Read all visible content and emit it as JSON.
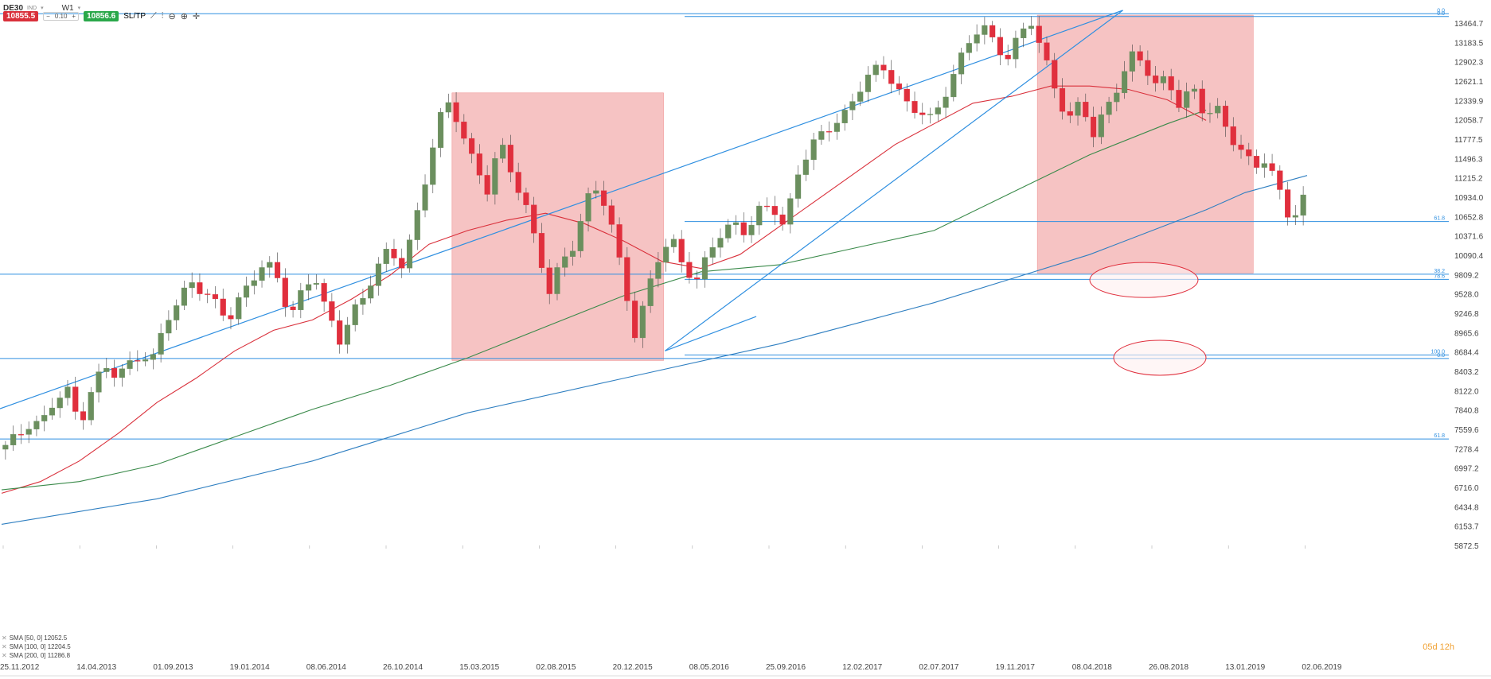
{
  "toolbar": {
    "symbol": "DE30",
    "symbol_type": "IND",
    "timeframe": "W1",
    "sell_price": "10855.5",
    "lot": "0.10",
    "buy_price": "10856.6",
    "sltp_label": "SL/TP",
    "icons": [
      "line-chart-icon",
      "bar-chart-icon",
      "zoom-out-icon",
      "zoom-in-icon",
      "crosshair-icon"
    ]
  },
  "legend": [
    {
      "label": "SMA [50, 0] 12052.5",
      "color": "#d9303b"
    },
    {
      "label": "SMA [100, 0] 12204.5",
      "color": "#3a8a4a"
    },
    {
      "label": "SMA [200, 0] 11286.8",
      "color": "#2f7fc1"
    }
  ],
  "countdown": "05d 12h",
  "colors": {
    "up": "#6b8f5e",
    "down": "#e02f3d",
    "zone": "#f4b8b8",
    "hline": "#2f8fe0",
    "ellipse": "#e02f3d"
  },
  "chart_data": {
    "type": "candlestick",
    "x_ticks": [
      "25.11.2012",
      "14.04.2013",
      "01.09.2013",
      "19.01.2014",
      "08.06.2014",
      "26.10.2014",
      "15.03.2015",
      "02.08.2015",
      "20.12.2015",
      "08.05.2016",
      "25.09.2016",
      "12.02.2017",
      "02.07.2017",
      "19.11.2017",
      "08.04.2018",
      "26.08.2018",
      "13.01.2019",
      "02.06.2019"
    ],
    "y_ticks": [
      "13464.7",
      "13183.5",
      "12902.3",
      "12621.1",
      "12339.9",
      "12058.7",
      "11777.5",
      "11496.3",
      "11215.2",
      "10934.0",
      "10652.8",
      "10371.6",
      "10090.4",
      "9809.2",
      "9528.0",
      "9246.8",
      "8965.6",
      "8684.4",
      "8403.2",
      "8122.0",
      "7840.8",
      "7559.6",
      "7278.4",
      "6997.2",
      "6716.0",
      "6434.8",
      "6153.7",
      "5872.5"
    ],
    "ylim": [
      5872.5,
      13650
    ],
    "candle_path": [
      7280,
      7450,
      7700,
      7680,
      7950,
      8100,
      7650,
      8200,
      8450,
      8300,
      8500,
      8700,
      8600,
      9100,
      9400,
      9750,
      9600,
      9350,
      9100,
      9500,
      9800,
      10000,
      9700,
      9200,
      9600,
      9850,
      9200,
      8800,
      9300,
      9500,
      9900,
      10100,
      9950,
      10500,
      11200,
      12000,
      12300,
      11900,
      11400,
      11000,
      11700,
      11300,
      10900,
      10200,
      9500,
      10000,
      10300,
      10900,
      11050,
      10500,
      9800,
      8900,
      9600,
      10100,
      10300,
      9950,
      9700,
      10150,
      10400,
      10600,
      10450,
      10700,
      10800,
      10500,
      11300,
      11600,
      11800,
      12000,
      12200,
      12500,
      12700,
      12800,
      12600,
      12300,
      12150,
      12000,
      12450,
      12900,
      13200,
      13400,
      13150,
      13000,
      13300,
      13450,
      12950,
      12500,
      12100,
      12300,
      11800,
      12200,
      12600,
      13000,
      12850,
      12550,
      12700,
      12300,
      12500,
      12100,
      12250,
      11900,
      11600,
      11300,
      11500,
      11100,
      10600,
      10860
    ],
    "sma_series": [
      {
        "name": "SMA [50, 0] 12052.5",
        "period": 50,
        "color": "#d9303b",
        "points": [
          [
            0,
            6630
          ],
          [
            5,
            6800
          ],
          [
            10,
            7100
          ],
          [
            15,
            7500
          ],
          [
            20,
            7950
          ],
          [
            25,
            8300
          ],
          [
            30,
            8700
          ],
          [
            35,
            9000
          ],
          [
            40,
            9150
          ],
          [
            45,
            9450
          ],
          [
            50,
            9800
          ],
          [
            55,
            10250
          ],
          [
            60,
            10450
          ],
          [
            65,
            10600
          ],
          [
            70,
            10700
          ],
          [
            75,
            10550
          ],
          [
            80,
            10300
          ],
          [
            85,
            10000
          ],
          [
            90,
            9900
          ],
          [
            95,
            10100
          ],
          [
            100,
            10500
          ],
          [
            105,
            10900
          ],
          [
            110,
            11300
          ],
          [
            115,
            11700
          ],
          [
            120,
            12000
          ],
          [
            125,
            12300
          ],
          [
            130,
            12400
          ],
          [
            135,
            12550
          ],
          [
            140,
            12550
          ],
          [
            145,
            12500
          ],
          [
            150,
            12350
          ],
          [
            155,
            12050
          ]
        ]
      },
      {
        "name": "SMA [100, 0] 12204.5",
        "period": 100,
        "color": "#3a8a4a",
        "points": [
          [
            0,
            6680
          ],
          [
            10,
            6800
          ],
          [
            20,
            7050
          ],
          [
            30,
            7450
          ],
          [
            40,
            7850
          ],
          [
            50,
            8200
          ],
          [
            60,
            8600
          ],
          [
            70,
            9050
          ],
          [
            80,
            9500
          ],
          [
            90,
            9850
          ],
          [
            100,
            9950
          ],
          [
            110,
            10200
          ],
          [
            120,
            10450
          ],
          [
            130,
            11000
          ],
          [
            140,
            11550
          ],
          [
            150,
            12000
          ],
          [
            155,
            12200
          ]
        ]
      },
      {
        "name": "SMA [200, 0] 11286.8",
        "period": 200,
        "color": "#2f7fc1",
        "points": [
          [
            0,
            6180
          ],
          [
            20,
            6550
          ],
          [
            40,
            7100
          ],
          [
            60,
            7800
          ],
          [
            80,
            8300
          ],
          [
            100,
            8800
          ],
          [
            120,
            9400
          ],
          [
            140,
            10100
          ],
          [
            155,
            10750
          ],
          [
            160,
            11000
          ],
          [
            168,
            11250
          ]
        ]
      }
    ],
    "horizontal_levels": [
      {
        "value": 13600,
        "label": "0.0"
      },
      {
        "value": 13560,
        "label": "0.0"
      },
      {
        "value": 10580,
        "label": "61.8"
      },
      {
        "value": 9815,
        "label": "38.2"
      },
      {
        "value": 9740,
        "label": "78.6"
      },
      {
        "value": 8640,
        "label": "100.0"
      },
      {
        "value": 8590,
        "label": "0.0"
      },
      {
        "value": 7420,
        "label": "61.8"
      }
    ],
    "zones": [
      {
        "x_start": 0.312,
        "x_end": 0.458,
        "y_top": 12450,
        "y_bottom": 8560
      },
      {
        "x_start": 0.716,
        "x_end": 0.865,
        "y_top": 13580,
        "y_bottom": 9830
      }
    ],
    "trend_lines": [
      {
        "from": [
          0.0,
          7860
        ],
        "to": [
          0.775,
          13650
        ]
      },
      {
        "from": [
          0.459,
          8700
        ],
        "to": [
          0.775,
          13650
        ]
      },
      {
        "from": [
          0.459,
          8700
        ],
        "to": [
          0.522,
          9200
        ]
      }
    ],
    "ellipses": [
      {
        "cx": 1437,
        "cy": 9730,
        "rx": 68,
        "ry": 300
      },
      {
        "cx": 1457,
        "cy": 8600,
        "rx": 58,
        "ry": 280
      }
    ]
  }
}
